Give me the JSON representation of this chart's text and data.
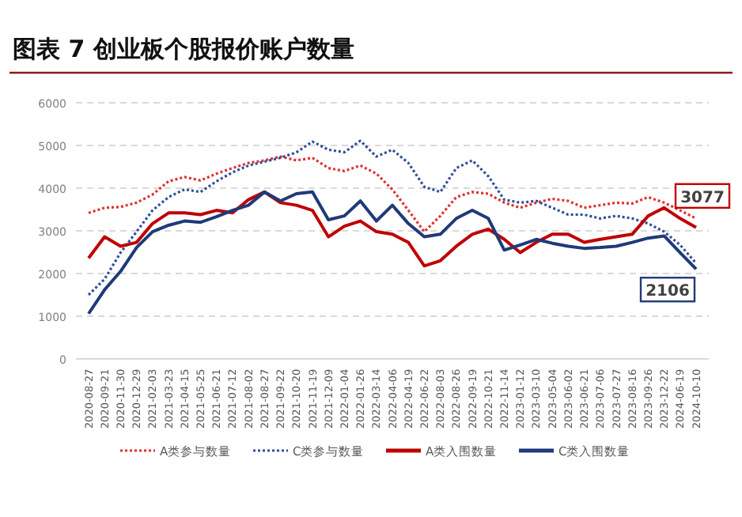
{
  "chart_data": {
    "type": "line",
    "title": "图表 7 创业板个股报价账户数量",
    "categories": [
      "2020-08-27",
      "2020-09-21",
      "2020-11-30",
      "2020-12-29",
      "2021-02-03",
      "2021-03-23",
      "2021-04-15",
      "2021-05-25",
      "2021-06-21",
      "2021-07-12",
      "2021-08-02",
      "2021-08-27",
      "2021-09-22",
      "2021-10-20",
      "2021-11-19",
      "2021-12-09",
      "2022-01-04",
      "2022-01-26",
      "2022-03-14",
      "2022-04-06",
      "2022-04-19",
      "2022-06-22",
      "2022-08-03",
      "2022-08-26",
      "2022-09-19",
      "2022-10-21",
      "2022-11-14",
      "2023-01-12",
      "2023-03-10",
      "2023-05-04",
      "2023-06-02",
      "2023-06-21",
      "2023-07-06",
      "2023-07-27",
      "2023-08-16",
      "2023-09-26",
      "2023-12-22",
      "2024-06-19",
      "2024-10-10"
    ],
    "series": [
      {
        "name": "A类参与数量",
        "color": "#e03030",
        "line_style": "dotted",
        "values": [
          3420,
          3540,
          3560,
          3660,
          3850,
          4160,
          4260,
          4180,
          4340,
          4470,
          4590,
          4650,
          4740,
          4650,
          4710,
          4470,
          4400,
          4530,
          4340,
          3970,
          3480,
          2980,
          3350,
          3790,
          3910,
          3870,
          3660,
          3540,
          3660,
          3750,
          3700,
          3540,
          3600,
          3660,
          3640,
          3790,
          3660,
          3480,
          3290
        ]
      },
      {
        "name": "C类参与数量",
        "color": "#2f4f9a",
        "line_style": "dotted",
        "values": [
          1500,
          1870,
          2490,
          2980,
          3480,
          3790,
          3970,
          3910,
          4160,
          4370,
          4530,
          4620,
          4710,
          4840,
          5090,
          4900,
          4840,
          5110,
          4740,
          4900,
          4590,
          4030,
          3910,
          4470,
          4650,
          4280,
          3730,
          3660,
          3700,
          3540,
          3380,
          3380,
          3290,
          3350,
          3290,
          3170,
          2980,
          2670,
          2240
        ]
      },
      {
        "name": "A类入围数量",
        "color": "#c00000",
        "line_style": "solid",
        "values": [
          2360,
          2860,
          2640,
          2730,
          3170,
          3420,
          3420,
          3380,
          3480,
          3420,
          3730,
          3910,
          3660,
          3600,
          3480,
          2860,
          3110,
          3230,
          2980,
          2920,
          2730,
          2180,
          2300,
          2640,
          2920,
          3040,
          2800,
          2490,
          2730,
          2920,
          2920,
          2730,
          2800,
          2860,
          2920,
          3350,
          3540,
          3290,
          3077
        ],
        "value_labels": [
          null,
          null,
          null,
          null,
          null,
          null,
          null,
          null,
          null,
          null,
          null,
          null,
          null,
          null,
          null,
          null,
          null,
          null,
          null,
          null,
          null,
          null,
          null,
          null,
          null,
          null,
          null,
          null,
          null,
          null,
          null,
          null,
          null,
          null,
          null,
          null,
          null,
          null,
          "3077"
        ]
      },
      {
        "name": "C类入围数量",
        "color": "#1f3a7a",
        "line_style": "solid",
        "values": [
          1060,
          1620,
          2050,
          2610,
          2980,
          3130,
          3230,
          3200,
          3330,
          3480,
          3600,
          3910,
          3700,
          3870,
          3910,
          3260,
          3350,
          3700,
          3230,
          3600,
          3170,
          2860,
          2920,
          3290,
          3480,
          3290,
          2550,
          2670,
          2800,
          2710,
          2640,
          2590,
          2610,
          2640,
          2730,
          2830,
          2880,
          2490,
          2106
        ],
        "value_labels": [
          null,
          null,
          null,
          null,
          null,
          null,
          null,
          null,
          null,
          null,
          null,
          null,
          null,
          null,
          null,
          null,
          null,
          null,
          null,
          null,
          null,
          null,
          null,
          null,
          null,
          null,
          null,
          null,
          null,
          null,
          null,
          null,
          null,
          null,
          null,
          null,
          null,
          null,
          "2106"
        ]
      }
    ],
    "ylim": [
      0,
      6000
    ],
    "yticks": [
      0,
      1000,
      2000,
      3000,
      4000,
      5000,
      6000
    ],
    "grid": "y",
    "legend": "bottom"
  }
}
